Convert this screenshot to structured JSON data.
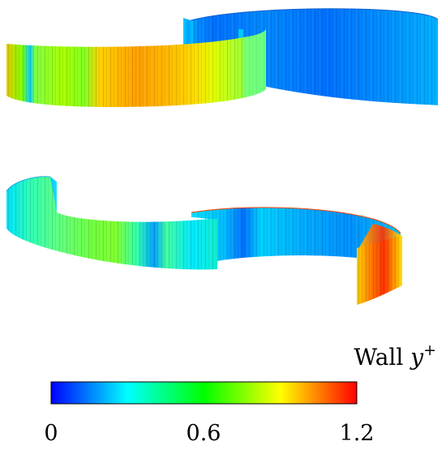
{
  "colorbar": {
    "title_text": "Wall ",
    "title_var": "y",
    "title_sup": "+",
    "ticks": [
      "0",
      "0.6",
      "1.2"
    ],
    "range": [
      0,
      1.2
    ],
    "colors": [
      "#0000ff",
      "#00ffff",
      "#00ff00",
      "#ffff00",
      "#ff0000"
    ]
  },
  "blades": {
    "top": {
      "left_level": 0.85,
      "right_level": 0.2
    },
    "bottom": {
      "left_level": 0.4,
      "right_level": 0.25,
      "tip_level": 1.05
    }
  }
}
